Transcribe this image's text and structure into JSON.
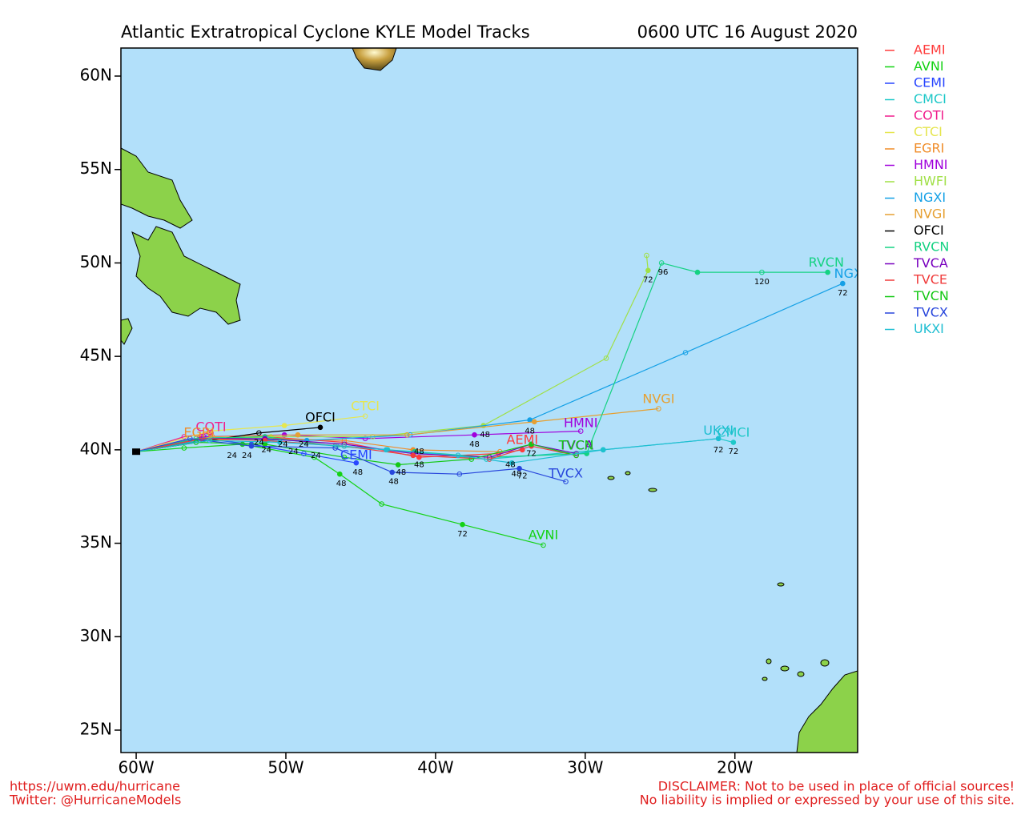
{
  "map": {
    "title": "Atlantic Extratropical Cyclone KYLE Model Tracks",
    "date": "0600 UTC 16 August 2020",
    "xlim": [
      -61.02,
      -11.8
    ],
    "ylim": [
      23.8,
      61.5
    ],
    "xticks": [
      {
        "value": -60,
        "label": "60W"
      },
      {
        "value": -50,
        "label": "50W"
      },
      {
        "value": -40,
        "label": "40W"
      },
      {
        "value": -30,
        "label": "30W"
      },
      {
        "value": -20,
        "label": "20W"
      }
    ],
    "yticks": [
      {
        "value": 25,
        "label": "25N"
      },
      {
        "value": 30,
        "label": "30N"
      },
      {
        "value": 35,
        "label": "35N"
      },
      {
        "value": 40,
        "label": "40N"
      },
      {
        "value": 45,
        "label": "45N"
      },
      {
        "value": 50,
        "label": "50N"
      },
      {
        "value": 55,
        "label": "55N"
      },
      {
        "value": 60,
        "label": "60N"
      }
    ],
    "tracks": [
      {
        "name": "AEMI",
        "color": "#ff3c3c",
        "lon": [
          -60,
          -55.7,
          -51.4,
          -46.1,
          -41.1,
          -35.8,
          -34.2
        ],
        "lat": [
          39.9,
          40.6,
          40.7,
          40.4,
          39.6,
          39.8,
          40.0
        ]
      },
      {
        "name": "AVNI",
        "color": "#14d214",
        "lon": [
          -60,
          -56.8,
          -52.9,
          -48.1,
          -46.4,
          -43.6,
          -38.2,
          -32.8
        ],
        "lat": [
          39.9,
          40.1,
          40.3,
          39.6,
          38.7,
          37.1,
          36.0,
          34.9
        ]
      },
      {
        "name": "CEMI",
        "color": "#2846ff",
        "lon": [
          -60,
          -55.6,
          -52.3,
          -48.8,
          -45.3
        ],
        "lat": [
          39.9,
          40.6,
          40.3,
          39.8,
          39.3
        ]
      },
      {
        "name": "CMCI",
        "color": "#1ec8c8",
        "lon": [
          -60,
          -55.2,
          -51.2,
          -46.6,
          -43.2,
          -36.6,
          -28.8,
          -21.1,
          -20.1
        ],
        "lat": [
          39.9,
          40.7,
          40.5,
          40.2,
          40.0,
          39.5,
          40.0,
          40.6,
          40.4
        ]
      },
      {
        "name": "COTI",
        "color": "#f01e8c",
        "lon": [
          -60,
          -56.8,
          -55.0
        ],
        "lat": [
          39.9,
          40.7,
          40.9
        ]
      },
      {
        "name": "CTCI",
        "color": "#e6e650",
        "lon": [
          -60,
          -55.1,
          -50.1,
          -44.7
        ],
        "lat": [
          39.9,
          41.0,
          41.3,
          41.8
        ]
      },
      {
        "name": "EGRI",
        "color": "#f08c28",
        "lon": [
          -60,
          -55.7,
          -51.4,
          -46.1,
          -41.5,
          -35.7
        ],
        "lat": [
          39.9,
          40.5,
          40.6,
          40.5,
          40.0,
          39.9
        ]
      },
      {
        "name": "HMNI",
        "color": "#a000dc",
        "lon": [
          -60,
          -55.5,
          -50.1,
          -44.7,
          -37.4,
          -30.3
        ],
        "lat": [
          39.9,
          40.7,
          40.8,
          40.6,
          40.8,
          41.0
        ]
      },
      {
        "name": "HWFI",
        "color": "#a0e046",
        "lon": [
          -60,
          -56.0,
          -51.0,
          -44.2,
          -36.8,
          -28.6,
          -25.8,
          -25.9
        ],
        "lat": [
          39.9,
          40.5,
          40.7,
          40.7,
          41.3,
          44.9,
          49.6,
          50.4
        ]
      },
      {
        "name": "NGXI",
        "color": "#14a0e6",
        "lon": [
          -60,
          -55.0,
          -48.6,
          -41.7,
          -33.7,
          -23.3,
          -12.8
        ],
        "lat": [
          39.9,
          40.6,
          40.5,
          40.8,
          41.6,
          45.2,
          48.9
        ]
      },
      {
        "name": "NVGI",
        "color": "#e6a032",
        "lon": [
          -60,
          -54.9,
          -49.2,
          -41.9,
          -33.4,
          -25.1
        ],
        "lat": [
          39.9,
          40.7,
          40.8,
          40.8,
          41.5,
          42.2
        ]
      },
      {
        "name": "OFCI",
        "color": "#000000",
        "lon": [
          -60,
          -51.8,
          -47.7
        ],
        "lat": [
          39.9,
          40.9,
          41.2
        ]
      },
      {
        "name": "RVCN",
        "color": "#14d282",
        "lon": [
          -60,
          -56.0,
          -51.4,
          -46.7,
          -41.4,
          -36.4,
          -29.9,
          -24.9,
          -22.5,
          -18.2,
          -13.8
        ],
        "lat": [
          39.9,
          40.6,
          40.7,
          40.2,
          39.9,
          39.6,
          39.8,
          50.0,
          49.5,
          49.5,
          49.5
        ]
      },
      {
        "name": "TVCA",
        "color": "#7800be",
        "lon": [
          -60,
          -55.6,
          -51.4,
          -46.1,
          -41.5,
          -36.4,
          -33.6,
          -30.6
        ],
        "lat": [
          39.9,
          40.6,
          40.6,
          40.3,
          39.8,
          39.6,
          40.3,
          39.8
        ]
      },
      {
        "name": "TVCE",
        "color": "#f03c3c",
        "lon": [
          -60,
          -55.6,
          -51.4,
          -46.1,
          -41.5,
          -36.4,
          -33.6,
          -30.6
        ],
        "lat": [
          39.9,
          40.6,
          40.5,
          40.2,
          39.7,
          39.5,
          40.2,
          39.7
        ]
      },
      {
        "name": "TVCN",
        "color": "#14c814",
        "lon": [
          -60,
          -56.0,
          -51.4,
          -46.1,
          -42.5,
          -37.6,
          -33.6,
          -30.6
        ],
        "lat": [
          39.9,
          40.4,
          40.3,
          39.6,
          39.2,
          39.5,
          40.3,
          39.7
        ]
      },
      {
        "name": "TVCX",
        "color": "#2846dc",
        "lon": [
          -60,
          -56.4,
          -52.3,
          -46.7,
          -42.9,
          -38.4,
          -34.4,
          -31.3
        ],
        "lat": [
          39.9,
          40.6,
          40.2,
          40.1,
          38.8,
          38.7,
          39.0,
          38.3
        ]
      },
      {
        "name": "UKXI",
        "color": "#1ebed2",
        "lon": [
          -60,
          -55.1,
          -50.4,
          -46.1,
          -43.3,
          -38.5,
          -34.9,
          -28.8,
          -21.1
        ],
        "lat": [
          39.9,
          40.5,
          40.4,
          40.2,
          40.0,
          39.7,
          39.3,
          40.0,
          40.6
        ]
      }
    ],
    "hour_labels": [
      {
        "text": "24",
        "lon": -53.6,
        "lat": 39.7
      },
      {
        "text": "24",
        "lon": -52.6,
        "lat": 39.7
      },
      {
        "text": "24",
        "lon": -51.8,
        "lat": 40.4
      },
      {
        "text": "24",
        "lon": -51.3,
        "lat": 40.0
      },
      {
        "text": "24",
        "lon": -50.2,
        "lat": 40.3
      },
      {
        "text": "24",
        "lon": -48.8,
        "lat": 40.3
      },
      {
        "text": "24",
        "lon": -49.5,
        "lat": 39.9
      },
      {
        "text": "24",
        "lon": -48.0,
        "lat": 39.7
      },
      {
        "text": "48",
        "lon": -46.3,
        "lat": 38.2
      },
      {
        "text": "48",
        "lon": -45.2,
        "lat": 38.8
      },
      {
        "text": "48",
        "lon": -42.8,
        "lat": 38.3
      },
      {
        "text": "48",
        "lon": -42.3,
        "lat": 38.8
      },
      {
        "text": "48",
        "lon": -41.1,
        "lat": 39.9
      },
      {
        "text": "48",
        "lon": -41.1,
        "lat": 39.2
      },
      {
        "text": "48",
        "lon": -37.4,
        "lat": 40.3
      },
      {
        "text": "48",
        "lon": -36.7,
        "lat": 40.8
      },
      {
        "text": "48",
        "lon": -35.0,
        "lat": 39.2
      },
      {
        "text": "48",
        "lon": -34.6,
        "lat": 38.7
      },
      {
        "text": "48",
        "lon": -33.7,
        "lat": 41.0
      },
      {
        "text": "72",
        "lon": -38.2,
        "lat": 35.5
      },
      {
        "text": "72",
        "lon": -34.2,
        "lat": 38.6
      },
      {
        "text": "72",
        "lon": -33.6,
        "lat": 39.8
      },
      {
        "text": "72",
        "lon": -25.8,
        "lat": 49.1
      },
      {
        "text": "72",
        "lon": -21.1,
        "lat": 40.0
      },
      {
        "text": "72",
        "lon": -20.1,
        "lat": 39.9
      },
      {
        "text": "72",
        "lon": -12.8,
        "lat": 48.4
      },
      {
        "text": "96",
        "lon": -24.8,
        "lat": 49.5
      },
      {
        "text": "120",
        "lon": -18.2,
        "lat": 49.0
      }
    ],
    "track_labels": [
      {
        "text": "AEMI",
        "lon": -34.2,
        "lat": 40.5,
        "track": 0
      },
      {
        "text": "AVNI",
        "lon": -32.8,
        "lat": 35.4,
        "track": 1
      },
      {
        "text": "CEMI",
        "lon": -45.3,
        "lat": 39.7,
        "track": 2
      },
      {
        "text": "CMCI",
        "lon": -20.1,
        "lat": 40.9,
        "track": 3
      },
      {
        "text": "COTI",
        "lon": -55.0,
        "lat": 41.2,
        "track": 4
      },
      {
        "text": "CTCI",
        "lon": -44.7,
        "lat": 42.3,
        "track": 5
      },
      {
        "text": "EGRI",
        "lon": -55.8,
        "lat": 40.9,
        "track": 6
      },
      {
        "text": "HMNI",
        "lon": -30.3,
        "lat": 41.4,
        "track": 7
      },
      {
        "text": "NGXI",
        "lon": -12.3,
        "lat": 49.4,
        "track": 9
      },
      {
        "text": "NVGI",
        "lon": -25.1,
        "lat": 42.7,
        "track": 10
      },
      {
        "text": "OFCI",
        "lon": -47.7,
        "lat": 41.7,
        "track": 11
      },
      {
        "text": "RVCN",
        "lon": -13.9,
        "lat": 50.0,
        "track": 12
      },
      {
        "text": "TVCA",
        "lon": -30.6,
        "lat": 40.2,
        "track": 13
      },
      {
        "text": "TVCN",
        "lon": -30.6,
        "lat": 40.2,
        "track": 15
      },
      {
        "text": "TVCX",
        "lon": -31.3,
        "lat": 38.7,
        "track": 16
      },
      {
        "text": "UKXI",
        "lon": -21.1,
        "lat": 41.0,
        "track": 17
      }
    ]
  },
  "footer": {
    "left": [
      "https://uwm.edu/hurricane",
      "Twitter: @HurricaneModels"
    ],
    "right": [
      "DISCLAIMER: Not to be used in place of official sources!",
      "No liability is implied or expressed by your use of this site."
    ]
  }
}
